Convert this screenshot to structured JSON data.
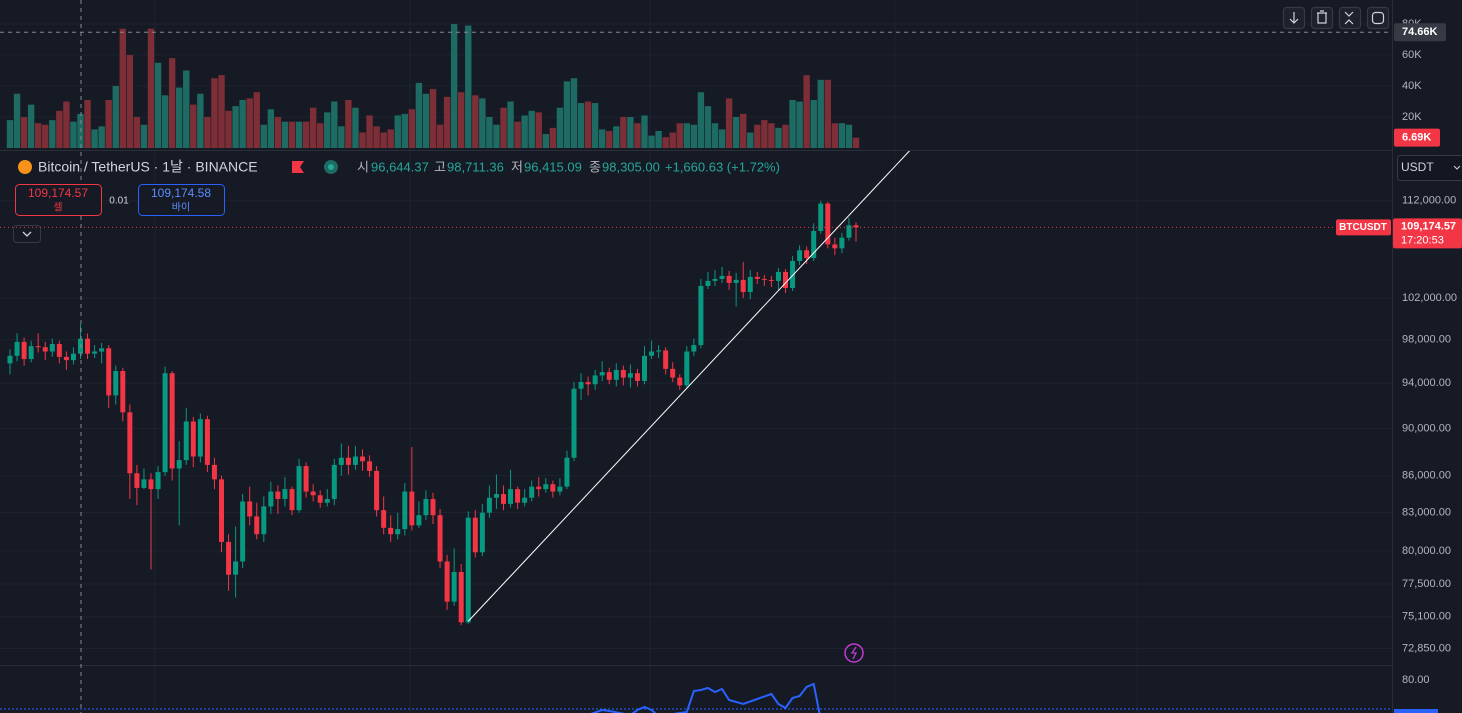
{
  "header": {
    "symbol": "Bitcoin / TetherUS · 1날 · BINANCE",
    "ohlc": [
      {
        "label": "시",
        "value": "96,644.37"
      },
      {
        "label": "고",
        "value": "98,711.36"
      },
      {
        "label": "저",
        "value": "96,415.09"
      },
      {
        "label": "종",
        "value": "98,305.00"
      }
    ],
    "change": "+1,660.63 (+1.72%)"
  },
  "trade": {
    "sell_price": "109,174.57",
    "sell_label": "셀",
    "spread": "0.01",
    "buy_price": "109,174.58",
    "buy_label": "바이"
  },
  "currency": "USDT",
  "price_chart": {
    "type": "candlestick",
    "log_scale": true,
    "grid": true,
    "up_color": "#089981",
    "down_color": "#f23645",
    "ylim": [
      71700,
      117600
    ],
    "yticks": [
      {
        "value": 72850,
        "label": "72,850.00"
      },
      {
        "value": 75100,
        "label": "75,100.00"
      },
      {
        "value": 77500,
        "label": "77,500.00"
      },
      {
        "value": 80000,
        "label": "80,000.00"
      },
      {
        "value": 83000,
        "label": "83,000.00"
      },
      {
        "value": 86000,
        "label": "86,000.00"
      },
      {
        "value": 90000,
        "label": "90,000.00"
      },
      {
        "value": 94000,
        "label": "94,000.00"
      },
      {
        "value": 98000,
        "label": "98,000.00"
      },
      {
        "value": 102000,
        "label": "102,000.00"
      },
      {
        "value": 112000,
        "label": "112,000.00"
      }
    ],
    "last_price": {
      "value": 109174.57,
      "label": "109,174.57"
    },
    "countdown": "17:20:53",
    "symbol_tag": "BTCUSDT",
    "trendline": {
      "start": [
        65,
        74780
      ],
      "end": [
        127.7,
        117600
      ],
      "color": "#ffffff"
    },
    "candles": [
      [
        95800,
        97100,
        94800,
        96500
      ],
      [
        96500,
        98600,
        96000,
        97800
      ],
      [
        97800,
        98200,
        95600,
        96200
      ],
      [
        96200,
        97900,
        95900,
        97400
      ],
      [
        97400,
        98600,
        96800,
        97300
      ],
      [
        97300,
        97800,
        96100,
        96900
      ],
      [
        96900,
        98100,
        96400,
        97600
      ],
      [
        97600,
        97900,
        95800,
        96400
      ],
      [
        96400,
        96900,
        95200,
        96100
      ],
      [
        96100,
        97300,
        95700,
        96700
      ],
      [
        96700,
        99500,
        96200,
        98100
      ],
      [
        98100,
        98600,
        96200,
        96700
      ],
      [
        96700,
        97500,
        96300,
        96900
      ],
      [
        96900,
        97700,
        95800,
        97200
      ],
      [
        97200,
        97500,
        91800,
        92900
      ],
      [
        92900,
        95600,
        92100,
        95100
      ],
      [
        95100,
        95400,
        90600,
        91400
      ],
      [
        91400,
        92100,
        84100,
        86200
      ],
      [
        86200,
        86900,
        83600,
        85000
      ],
      [
        85000,
        86600,
        84900,
        85700
      ],
      [
        85700,
        86200,
        78600,
        84900
      ],
      [
        84900,
        86800,
        84100,
        86300
      ],
      [
        86300,
        95500,
        86000,
        94900
      ],
      [
        94900,
        95100,
        85600,
        86600
      ],
      [
        86600,
        88900,
        82000,
        87300
      ],
      [
        87300,
        91800,
        86900,
        90600
      ],
      [
        90600,
        91000,
        86700,
        87600
      ],
      [
        87600,
        91300,
        87100,
        90800
      ],
      [
        90800,
        91100,
        86300,
        86900
      ],
      [
        86900,
        87500,
        84900,
        85700
      ],
      [
        85700,
        86000,
        79900,
        80700
      ],
      [
        80700,
        81300,
        77000,
        78200
      ],
      [
        78200,
        81900,
        76500,
        79200
      ],
      [
        79200,
        84500,
        78700,
        83900
      ],
      [
        83900,
        85100,
        82000,
        82700
      ],
      [
        82700,
        83800,
        80900,
        81300
      ],
      [
        81300,
        84300,
        80700,
        83500
      ],
      [
        83500,
        85500,
        82900,
        84700
      ],
      [
        84700,
        85200,
        82900,
        84100
      ],
      [
        84100,
        85900,
        83500,
        84900
      ],
      [
        84900,
        85100,
        82800,
        83200
      ],
      [
        83200,
        87400,
        83000,
        86800
      ],
      [
        86800,
        87100,
        84200,
        84700
      ],
      [
        84700,
        85300,
        83900,
        84400
      ],
      [
        84400,
        84800,
        83400,
        83800
      ],
      [
        83800,
        84900,
        83500,
        84100
      ],
      [
        84100,
        87400,
        83600,
        86900
      ],
      [
        86900,
        88700,
        86000,
        87500
      ],
      [
        87500,
        88500,
        86100,
        86900
      ],
      [
        86900,
        88500,
        86500,
        87600
      ],
      [
        87600,
        88200,
        86400,
        87200
      ],
      [
        87200,
        87700,
        85900,
        86400
      ],
      [
        86400,
        86800,
        82700,
        83200
      ],
      [
        83200,
        84300,
        81300,
        81800
      ],
      [
        81800,
        82800,
        80700,
        81300
      ],
      [
        81300,
        83000,
        80900,
        81700
      ],
      [
        81700,
        85400,
        81200,
        84700
      ],
      [
        84700,
        88400,
        81600,
        82000
      ],
      [
        82000,
        83900,
        81800,
        82800
      ],
      [
        82800,
        84800,
        82400,
        84100
      ],
      [
        84100,
        84600,
        82100,
        82800
      ],
      [
        82800,
        83300,
        78700,
        79200
      ],
      [
        79200,
        79700,
        75600,
        76200
      ],
      [
        76200,
        80200,
        75900,
        78400
      ],
      [
        78400,
        79000,
        74500,
        74700
      ],
      [
        74700,
        83100,
        74600,
        82600
      ],
      [
        82600,
        83200,
        79500,
        79900
      ],
      [
        79900,
        83700,
        79600,
        83000
      ],
      [
        83000,
        85200,
        82600,
        84200
      ],
      [
        84200,
        86100,
        83300,
        84500
      ],
      [
        84500,
        85200,
        83200,
        83700
      ],
      [
        83700,
        86500,
        83400,
        84900
      ],
      [
        84900,
        85100,
        83300,
        83800
      ],
      [
        83800,
        84900,
        83500,
        84200
      ],
      [
        84200,
        85600,
        83900,
        85100
      ],
      [
        85100,
        85900,
        84300,
        84900
      ],
      [
        84900,
        85800,
        84600,
        85300
      ],
      [
        85300,
        85600,
        84200,
        84700
      ],
      [
        84700,
        85800,
        84400,
        85100
      ],
      [
        85100,
        88100,
        84900,
        87500
      ],
      [
        87500,
        94100,
        87200,
        93500
      ],
      [
        93500,
        94900,
        92500,
        94100
      ],
      [
        94100,
        94600,
        92900,
        93900
      ],
      [
        93900,
        95200,
        93400,
        94700
      ],
      [
        94700,
        96000,
        94200,
        95000
      ],
      [
        95000,
        95400,
        93900,
        94300
      ],
      [
        94300,
        95800,
        93700,
        95200
      ],
      [
        95200,
        95600,
        93800,
        94500
      ],
      [
        94500,
        95700,
        93600,
        94900
      ],
      [
        94900,
        95300,
        93700,
        94200
      ],
      [
        94200,
        97400,
        93900,
        96500
      ],
      [
        96500,
        97900,
        96200,
        96900
      ],
      [
        96900,
        97500,
        96300,
        97000
      ],
      [
        97000,
        97300,
        94800,
        95300
      ],
      [
        95300,
        95900,
        94100,
        94500
      ],
      [
        94500,
        94800,
        93400,
        93800
      ],
      [
        93800,
        97400,
        93600,
        96900
      ],
      [
        96900,
        98100,
        96500,
        97500
      ],
      [
        97500,
        103900,
        97200,
        103200
      ],
      [
        103200,
        104600,
        102900,
        103700
      ],
      [
        103700,
        104800,
        103200,
        103900
      ],
      [
        103900,
        105100,
        103500,
        104200
      ],
      [
        104200,
        104700,
        102800,
        103500
      ],
      [
        103500,
        104500,
        101200,
        103800
      ],
      [
        103800,
        105600,
        102000,
        102600
      ],
      [
        102600,
        104800,
        101900,
        104100
      ],
      [
        104100,
        104600,
        103400,
        103900
      ],
      [
        103900,
        104300,
        103200,
        103800
      ],
      [
        103800,
        104200,
        103100,
        103700
      ],
      [
        103700,
        105000,
        102800,
        104600
      ],
      [
        104600,
        104900,
        102500,
        103000
      ],
      [
        103000,
        106200,
        102700,
        105700
      ],
      [
        105700,
        107300,
        105300,
        106800
      ],
      [
        106800,
        107200,
        105400,
        106000
      ],
      [
        106000,
        109600,
        105700,
        108800
      ],
      [
        108800,
        112000,
        108500,
        111700
      ],
      [
        111700,
        111900,
        107000,
        107400
      ],
      [
        107400,
        108100,
        106300,
        107000
      ],
      [
        107000,
        108600,
        106500,
        108100
      ],
      [
        108100,
        110200,
        107800,
        109400
      ],
      [
        109400,
        109700,
        107700,
        109174.57
      ]
    ]
  },
  "volume_chart": {
    "type": "bar",
    "up_color": "#1d6b62",
    "down_color": "#7e2e36",
    "ylim": [
      0,
      95500
    ],
    "yticks": [
      {
        "value": 20000,
        "label": "20K"
      },
      {
        "value": 40000,
        "label": "40K"
      },
      {
        "value": 60000,
        "label": "60K"
      },
      {
        "value": 80000,
        "label": "80K"
      }
    ],
    "crosshair": {
      "value": 74660,
      "label": "74.66K"
    },
    "last": {
      "value": 6690,
      "label": "6.69K"
    },
    "values": [
      18000,
      35000,
      20000,
      28000,
      16000,
      15000,
      18000,
      24000,
      30000,
      17000,
      22000,
      31000,
      12000,
      14000,
      31000,
      40000,
      77000,
      60000,
      20000,
      15000,
      77000,
      55000,
      34000,
      58000,
      39000,
      50000,
      28000,
      35000,
      20000,
      45000,
      47000,
      24000,
      27000,
      31000,
      32000,
      36000,
      15000,
      25000,
      20000,
      17000,
      17000,
      17000,
      17000,
      26000,
      16000,
      23000,
      30000,
      14000,
      31000,
      26000,
      10000,
      21000,
      14000,
      10000,
      12000,
      21000,
      22000,
      25000,
      42000,
      35000,
      38000,
      15000,
      33000,
      80000,
      36000,
      79000,
      34000,
      32000,
      20000,
      15000,
      26000,
      30000,
      17000,
      21000,
      24000,
      23000,
      9000,
      13000,
      26000,
      43000,
      45000,
      29000,
      30000,
      29000,
      12000,
      11000,
      14000,
      20000,
      20000,
      16000,
      21000,
      8000,
      11000,
      7000,
      10000,
      16000,
      16000,
      15000,
      36000,
      27000,
      16000,
      12000,
      32000,
      20000,
      22000,
      10000,
      15000,
      18000,
      16000,
      13000,
      15000,
      31000,
      30000,
      47000,
      31000,
      44000,
      44000,
      16000,
      16000,
      15000,
      6690
    ]
  },
  "indicator_chart": {
    "type": "line",
    "color": "#2962ff",
    "ylim": [
      76.7,
      81.5
    ],
    "yticks": [
      {
        "value": 80,
        "label": "80.00"
      }
    ],
    "x": [
      82,
      84,
      85,
      88,
      89,
      90,
      91,
      92,
      96,
      97,
      98,
      99,
      100,
      101,
      102,
      104,
      106,
      108,
      109,
      110,
      111,
      112,
      113,
      114,
      115
    ],
    "values": [
      76.5,
      77.0,
      76.9,
      76.5,
      77.0,
      77.3,
      77.0,
      76.4,
      76.8,
      78.9,
      79.0,
      79.2,
      78.8,
      79.1,
      78.0,
      77.6,
      78.1,
      78.6,
      77.6,
      77.2,
      78.2,
      78.4,
      79.3,
      79.6,
      76.0
    ]
  }
}
